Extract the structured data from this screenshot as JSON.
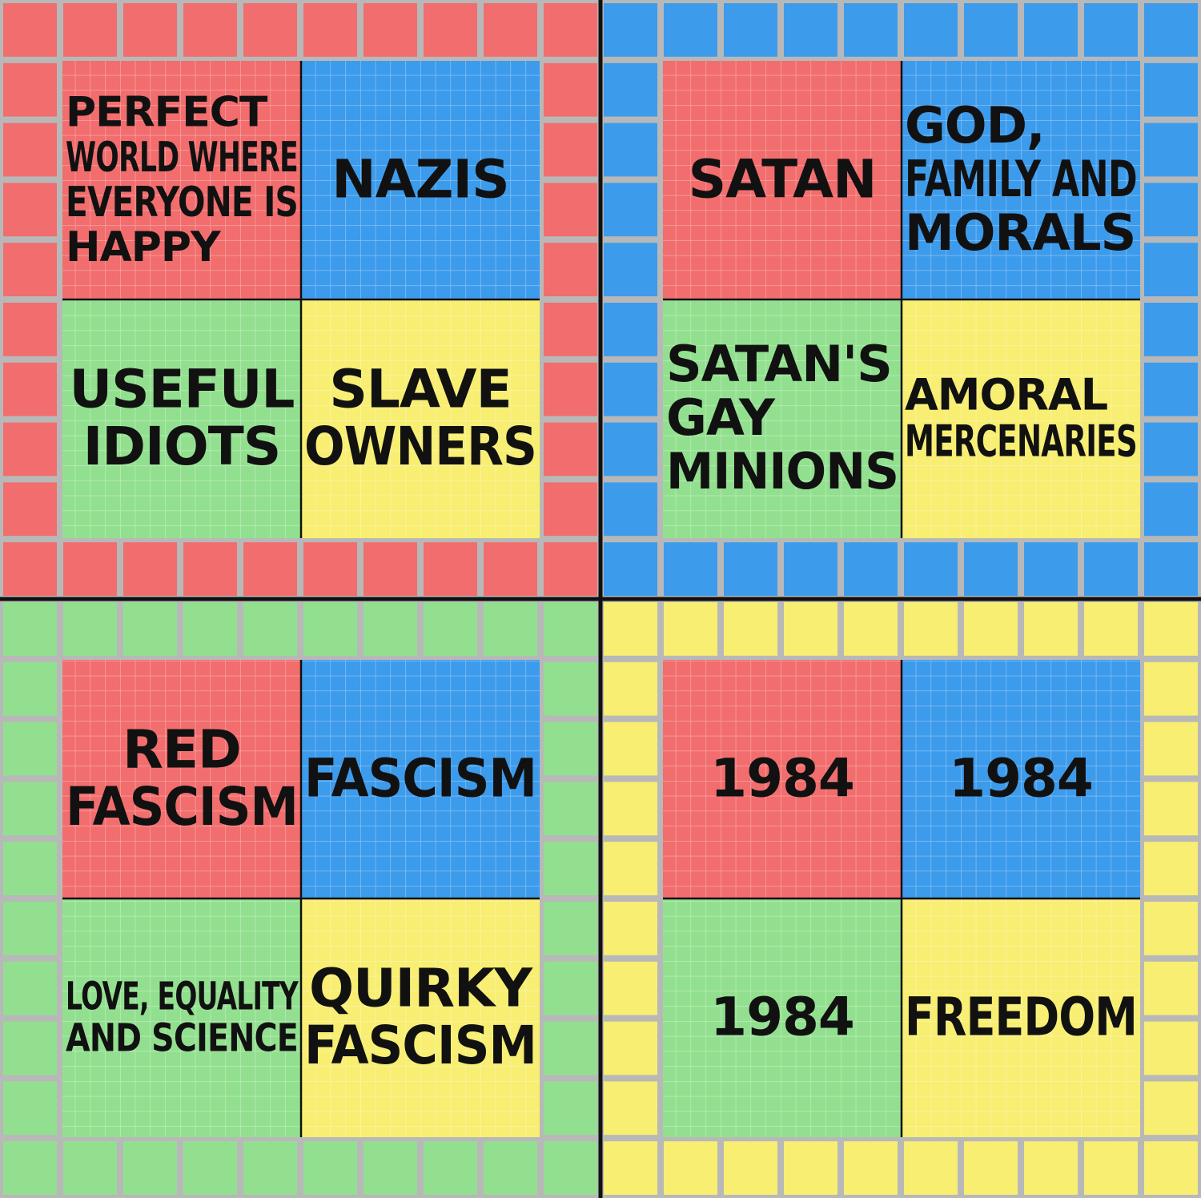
{
  "colors": {
    "red": "#f26d6d",
    "blue": "#3d9bec",
    "green": "#92e08f",
    "yellow": "#f7ee72",
    "grid_line": "#b8b8b8",
    "divider": "#111111",
    "text": "#111111"
  },
  "quadrants": [
    {
      "id": "top-left",
      "color": "red",
      "cells": [
        {
          "color": "red",
          "lines": [
            "PERFECT",
            "WORLD WHERE",
            "EVERYONE IS",
            "HAPPY"
          ]
        },
        {
          "color": "blue",
          "lines": [
            "NAZIS"
          ]
        },
        {
          "color": "green",
          "lines": [
            "USEFUL",
            "IDIOTS"
          ]
        },
        {
          "color": "yellow",
          "lines": [
            "SLAVE",
            "OWNERS"
          ]
        }
      ]
    },
    {
      "id": "top-right",
      "color": "blue",
      "cells": [
        {
          "color": "red",
          "lines": [
            "SATAN"
          ]
        },
        {
          "color": "blue",
          "lines": [
            "GOD,",
            "FAMILY AND",
            "MORALS"
          ]
        },
        {
          "color": "green",
          "lines": [
            "SATAN'S",
            "GAY",
            "MINIONS"
          ]
        },
        {
          "color": "yellow",
          "lines": [
            "AMORAL",
            "MERCENARIES"
          ]
        }
      ]
    },
    {
      "id": "bottom-left",
      "color": "green",
      "cells": [
        {
          "color": "red",
          "lines": [
            "RED",
            "FASCISM"
          ]
        },
        {
          "color": "blue",
          "lines": [
            "FASCISM"
          ]
        },
        {
          "color": "green",
          "lines": [
            "LOVE, EQUALITY",
            "AND SCIENCE"
          ]
        },
        {
          "color": "yellow",
          "lines": [
            "QUIRKY",
            "FASCISM"
          ]
        }
      ]
    },
    {
      "id": "bottom-right",
      "color": "yellow",
      "cells": [
        {
          "color": "red",
          "lines": [
            "1984"
          ]
        },
        {
          "color": "blue",
          "lines": [
            "1984"
          ]
        },
        {
          "color": "green",
          "lines": [
            "1984"
          ]
        },
        {
          "color": "yellow",
          "lines": [
            "FREEDOM"
          ]
        }
      ]
    }
  ]
}
